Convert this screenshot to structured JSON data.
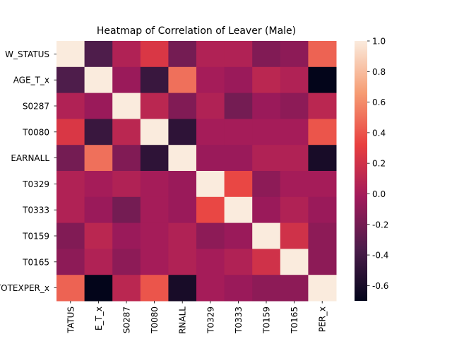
{
  "chart_data": {
    "type": "heatmap",
    "title": "Heatmap of Correlation of Leaver (Male)",
    "row_labels": [
      "W_STATUS",
      "AGE_T_x",
      "S0287",
      "T0080",
      "EARNALL",
      "T0329",
      "T0333",
      "T0159",
      "T0165",
      "TOTEXPER_x"
    ],
    "col_labels": [
      "TATUS",
      "E_T_x",
      "S0287",
      "T0080",
      "RNALL",
      "T0329",
      "T0333",
      "T0159",
      "T0165",
      "PER_x"
    ],
    "values": [
      [
        1.0,
        -0.35,
        0.05,
        0.25,
        -0.2,
        0.05,
        0.05,
        -0.15,
        -0.1,
        0.45
      ],
      [
        -0.35,
        1.0,
        -0.05,
        -0.45,
        0.5,
        0.0,
        -0.05,
        0.1,
        0.05,
        -0.7
      ],
      [
        0.05,
        -0.05,
        1.0,
        0.1,
        -0.15,
        0.05,
        -0.2,
        -0.05,
        -0.1,
        0.1
      ],
      [
        0.25,
        -0.45,
        0.1,
        1.0,
        -0.5,
        0.0,
        0.0,
        0.0,
        0.0,
        0.4
      ],
      [
        -0.2,
        0.5,
        -0.15,
        -0.5,
        1.0,
        -0.05,
        -0.05,
        0.05,
        0.05,
        -0.6
      ],
      [
        0.05,
        0.0,
        0.05,
        0.0,
        -0.05,
        1.0,
        0.35,
        -0.1,
        0.0,
        0.0
      ],
      [
        0.05,
        -0.05,
        -0.2,
        0.0,
        -0.05,
        0.35,
        1.0,
        -0.05,
        0.05,
        -0.05
      ],
      [
        -0.15,
        0.1,
        -0.05,
        0.0,
        0.05,
        -0.1,
        -0.05,
        1.0,
        0.2,
        -0.1
      ],
      [
        -0.1,
        0.05,
        -0.1,
        0.0,
        0.05,
        0.0,
        0.05,
        0.2,
        1.0,
        -0.1
      ],
      [
        0.45,
        -0.7,
        0.1,
        0.4,
        -0.6,
        0.0,
        -0.05,
        -0.1,
        -0.1,
        1.0
      ]
    ],
    "colorbar": {
      "min": -0.7,
      "max": 1.0,
      "ticks": [
        "-0.6",
        "-0.4",
        "-0.2",
        "0.0",
        "0.2",
        "0.4",
        "0.6",
        "0.8",
        "1.0"
      ],
      "tick_values": [
        -0.6,
        -0.4,
        -0.2,
        0.0,
        0.2,
        0.4,
        0.6,
        0.8,
        1.0
      ],
      "colormap": "rocket",
      "stops": [
        "#03051a",
        "#4c1d4b",
        "#a11a5b",
        "#e83f3f",
        "#f69c73",
        "#faebdd"
      ]
    },
    "grid": false
  }
}
